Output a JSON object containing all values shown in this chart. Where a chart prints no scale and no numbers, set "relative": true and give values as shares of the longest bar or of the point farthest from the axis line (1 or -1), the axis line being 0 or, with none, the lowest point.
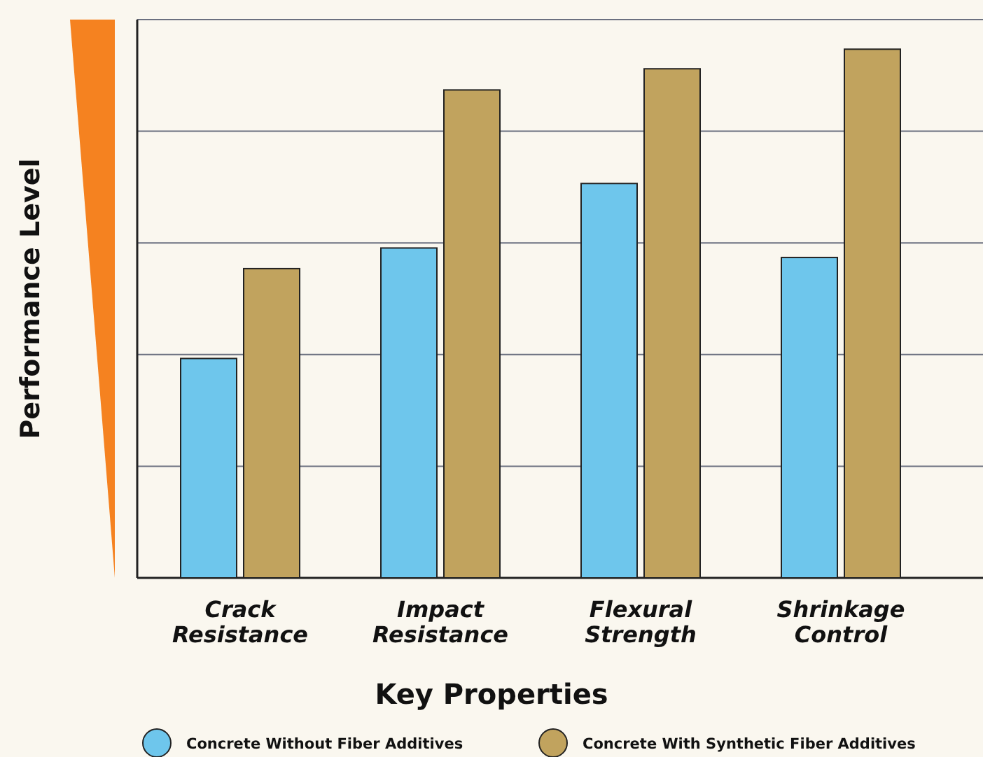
{
  "chart_data": {
    "type": "bar",
    "relative": true,
    "xlabel": "Key Properties",
    "ylabel": "Performance Level",
    "categories": [
      "Crack Resistance",
      "Impact Resistance",
      "Flexural Strength",
      "Shrinkage Control"
    ],
    "series": [
      {
        "name": "Concrete Without Fiber Additives",
        "color": "#6ec6ec",
        "values": [
          0.415,
          0.624,
          0.746,
          0.606
        ]
      },
      {
        "name": "Concrete With Synthetic Fiber Additives",
        "color": "#c1a35e",
        "values": [
          0.585,
          0.923,
          0.963,
          1
        ]
      }
    ],
    "grid": "y",
    "legend": "bottom"
  }
}
